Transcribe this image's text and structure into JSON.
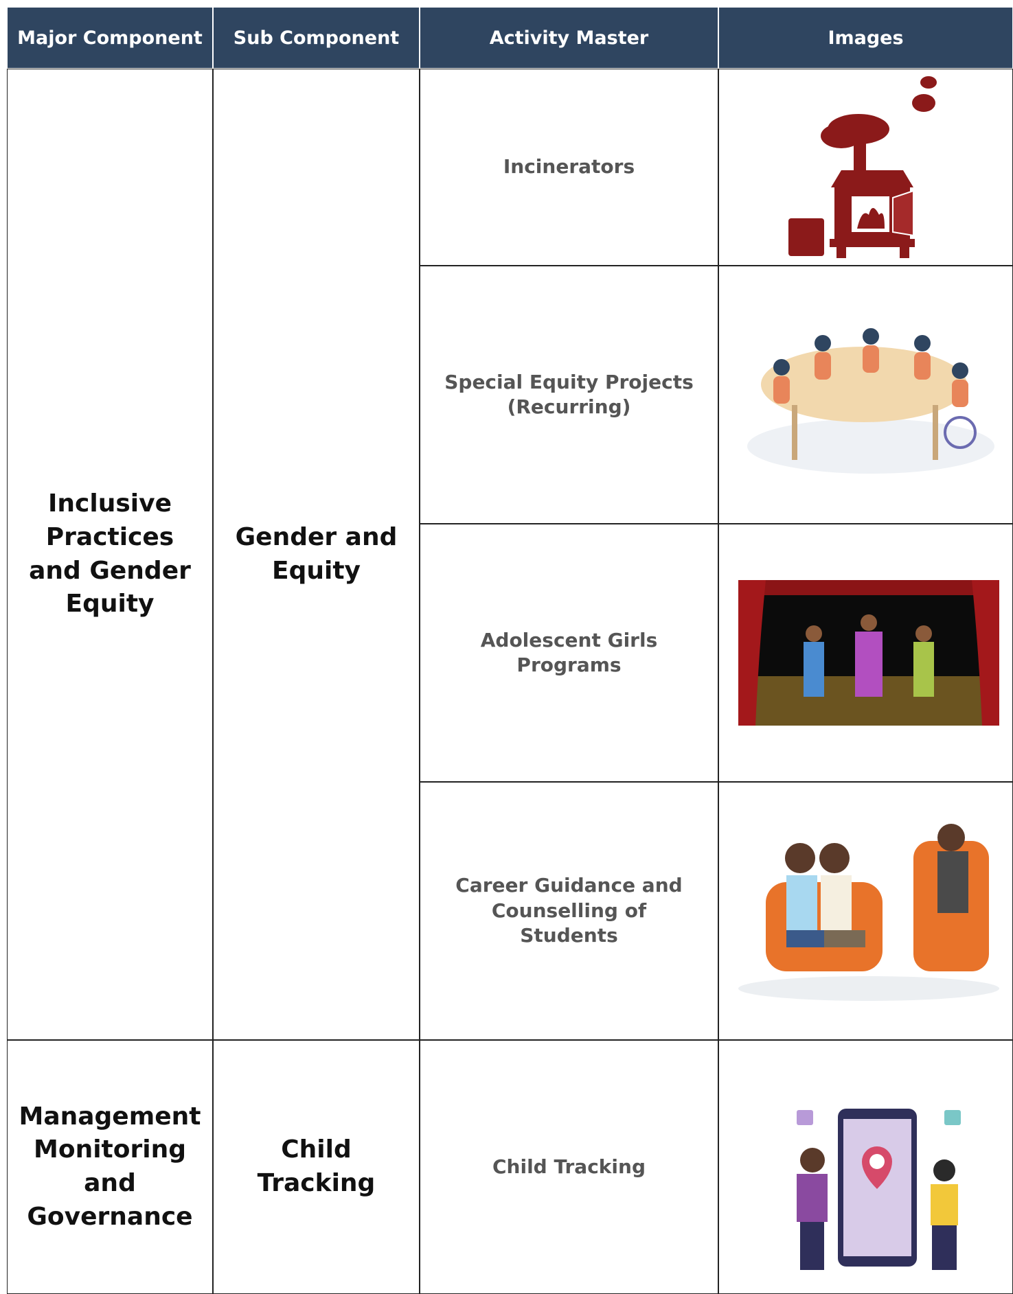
{
  "table": {
    "header": [
      "Major Component",
      "Sub Component",
      "Activity Master",
      "Images"
    ],
    "groups": [
      {
        "major": "Inclusive Practices and Gender Equity",
        "sub": "Gender and Equity",
        "activities": [
          "Incinerators",
          "Special Equity Projects (Recurring)",
          "Adolescent Girls Programs",
          "Career Guidance and Counselling of Students"
        ]
      },
      {
        "major": "Management Monitoring and Governance",
        "sub": "Child Tracking",
        "activities": [
          "Child Tracking"
        ]
      }
    ]
  }
}
